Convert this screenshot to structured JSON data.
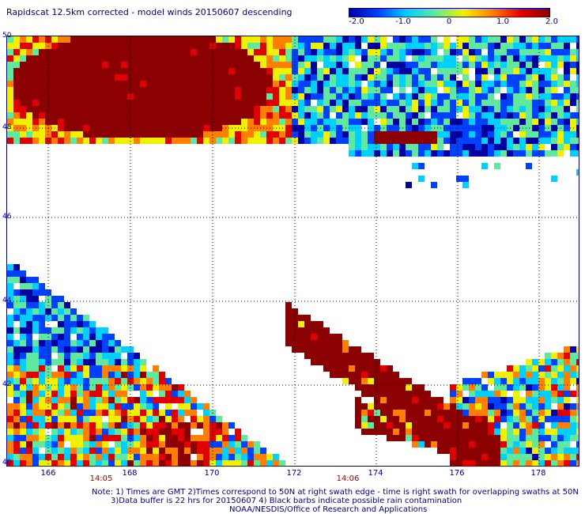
{
  "title": "Rapidscat 12.5km corrected - model winds 20150607 descending",
  "colorbar": {
    "ticks": [
      "-2.0",
      "-1.0",
      "0",
      "1.0",
      "2.0"
    ],
    "stops": [
      "#0000a0",
      "#0040ff",
      "#00d0ff",
      "#60e8a0",
      "#f0f000",
      "#ff8000",
      "#e00000",
      "#8b0000"
    ]
  },
  "axes": {
    "lon_ticks": [
      "166",
      "168",
      "170",
      "172",
      "174",
      "176",
      "178"
    ],
    "lat_ticks": [
      "50",
      "48",
      "46",
      "44",
      "42",
      "40"
    ],
    "lon_range": [
      165,
      178.5
    ],
    "lat_range": [
      40,
      50
    ],
    "grid": "dotted"
  },
  "swath_times": [
    "14:05",
    "14:06"
  ],
  "notes": {
    "line1": "Note: 1) Times are GMT 2)Times correspond to 50N at right swath edge - time is right swath for overlapping swaths at 50N",
    "line2": "3)Data buffer is 22 hrs for 20150607 4) Black barbs indicate possible rain contamination",
    "line3": "NOAA/NESDIS/Office of Research and Applications"
  }
}
